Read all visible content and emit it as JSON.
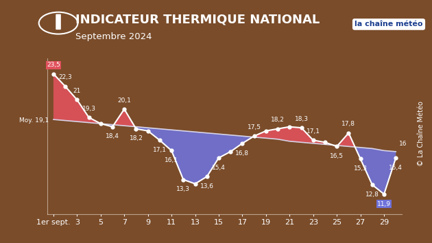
{
  "chart_data": {
    "type": "line",
    "title": "INDICATEUR THERMIQUE NATIONAL",
    "subtitle": "Septembre 2024",
    "logo": "la chaîne météo",
    "credit": "© La Chaîne Météo",
    "x": [
      1,
      2,
      3,
      4,
      5,
      6,
      7,
      8,
      9,
      10,
      11,
      12,
      13,
      14,
      15,
      16,
      17,
      18,
      19,
      20,
      21,
      22,
      23,
      24,
      25,
      26,
      27,
      28,
      29,
      30
    ],
    "series": [
      {
        "color": "#ffffff",
        "marker": "o",
        "values": [
          23.5,
          22.3,
          21.0,
          19.3,
          18.7,
          18.4,
          20.1,
          18.2,
          18.0,
          17.1,
          16.1,
          13.3,
          12.9,
          13.6,
          15.4,
          16.0,
          16.8,
          17.5,
          18.0,
          18.2,
          18.4,
          18.3,
          17.1,
          16.9,
          16.5,
          17.8,
          15.3,
          12.8,
          11.9,
          15.4
        ],
        "value_labels": [
          "23,5",
          "22,3",
          "21",
          "19,3",
          null,
          "18,4",
          "20,1",
          "18,2",
          null,
          "17,1",
          "16,1",
          "13,3",
          null,
          "13,6",
          "15,4",
          null,
          "16,8",
          "17,5",
          null,
          "18,2",
          null,
          "18,3",
          "17,1",
          null,
          "16,5",
          "17,8",
          "15,3",
          "12,8",
          "11,9",
          "15,4"
        ]
      },
      {
        "color": "#d8d4e8",
        "values": [
          19.1,
          19.0,
          18.9,
          18.8,
          18.7,
          18.6,
          18.5,
          18.4,
          18.3,
          18.2,
          18.1,
          18.0,
          17.9,
          17.8,
          17.7,
          17.6,
          17.5,
          17.4,
          17.3,
          17.2,
          17.0,
          16.9,
          16.8,
          16.7,
          16.6,
          16.5,
          16.4,
          16.3,
          16.1,
          16.0
        ],
        "value_labels": [
          "Moy. 19,1",
          null,
          null,
          null,
          null,
          null,
          null,
          null,
          null,
          null,
          null,
          null,
          null,
          null,
          null,
          null,
          null,
          null,
          null,
          null,
          null,
          null,
          null,
          null,
          null,
          null,
          null,
          null,
          null,
          "16"
        ]
      }
    ],
    "xlim": [
      0.5,
      30.5
    ],
    "xticks": [
      {
        "value": 1,
        "label": "1er sept."
      },
      3,
      5,
      7,
      9,
      11,
      13,
      15,
      17,
      19,
      21,
      23,
      25,
      27,
      29
    ],
    "ylim": [
      10,
      25
    ],
    "tick_labels": "x",
    "data_labels": true,
    "grid": false
  }
}
